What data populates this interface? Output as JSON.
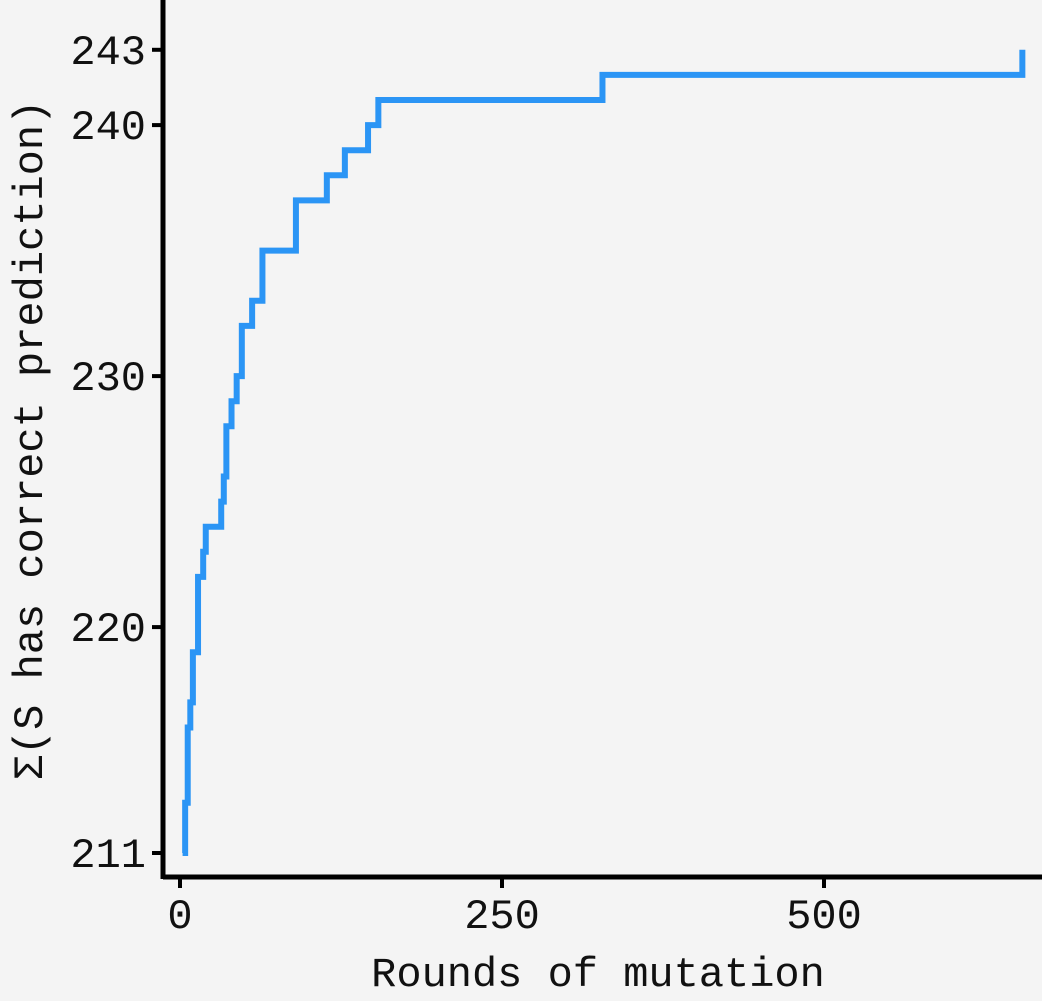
{
  "chart_data": {
    "type": "line",
    "title": "",
    "xlabel": "Rounds of mutation",
    "ylabel": "Σ(S has correct prediction)",
    "xlim": [
      0,
      655
    ],
    "ylim": [
      210,
      245
    ],
    "x_ticks": [
      0,
      250,
      500
    ],
    "x_tick_labels": [
      "0",
      "250",
      "500"
    ],
    "y_ticks": [
      211,
      220,
      230,
      240,
      243
    ],
    "y_tick_labels": [
      "211",
      "220",
      "230",
      "240",
      "243"
    ],
    "grid": false,
    "legend": "none",
    "series": [
      {
        "color": "#2b95f5",
        "step": true,
        "points": [
          [
            2,
            211
          ],
          [
            4,
            213
          ],
          [
            6,
            216
          ],
          [
            8,
            217
          ],
          [
            10,
            219
          ],
          [
            14,
            222
          ],
          [
            18,
            223
          ],
          [
            20,
            224
          ],
          [
            32,
            225
          ],
          [
            34,
            226
          ],
          [
            36,
            228
          ],
          [
            40,
            229
          ],
          [
            44,
            230
          ],
          [
            48,
            232
          ],
          [
            56,
            233
          ],
          [
            64,
            235
          ],
          [
            90,
            237
          ],
          [
            114,
            238
          ],
          [
            128,
            239
          ],
          [
            146,
            240
          ],
          [
            154,
            241
          ],
          [
            328,
            242
          ],
          [
            654,
            243
          ]
        ]
      }
    ]
  }
}
